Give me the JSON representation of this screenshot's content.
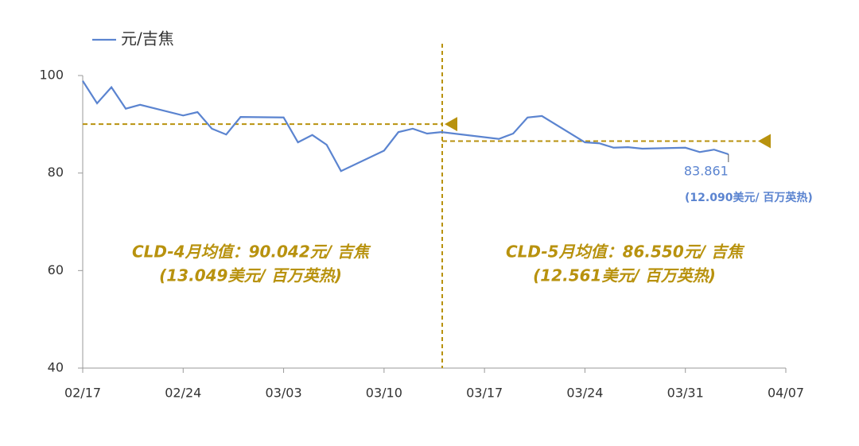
{
  "chart_data": {
    "type": "line",
    "x": [
      "02/17",
      "02/18",
      "02/19",
      "02/20",
      "02/21",
      "02/24",
      "02/25",
      "02/26",
      "02/27",
      "02/28",
      "03/03",
      "03/04",
      "03/05",
      "03/06",
      "03/07",
      "03/10",
      "03/11",
      "03/12",
      "03/13",
      "03/14",
      "03/18",
      "03/19",
      "03/20",
      "03/21",
      "03/24",
      "03/25",
      "03/26",
      "03/27",
      "03/28",
      "03/31",
      "04/01",
      "04/02",
      "04/03"
    ],
    "series": [
      {
        "name": "元/吉焦",
        "color": "#5b84d0",
        "values": [
          98.9,
          94.3,
          97.6,
          93.2,
          94.0,
          91.8,
          92.5,
          89.1,
          87.9,
          91.5,
          91.4,
          86.3,
          87.8,
          85.8,
          80.4,
          84.6,
          88.4,
          89.1,
          88.1,
          88.4,
          87.0,
          88.1,
          91.4,
          91.7,
          86.3,
          86.1,
          85.2,
          85.3,
          85.0,
          85.2,
          84.3,
          84.8,
          83.861
        ],
        "value_labels": [
          null,
          null,
          null,
          null,
          null,
          null,
          null,
          null,
          null,
          null,
          null,
          null,
          null,
          null,
          null,
          null,
          null,
          null,
          null,
          null,
          null,
          null,
          null,
          null,
          null,
          null,
          null,
          null,
          null,
          null,
          null,
          null,
          "83.861"
        ]
      }
    ],
    "last_note": "(12.090美元/ 百万英热)",
    "xticks": [
      "02/17",
      "02/24",
      "03/03",
      "03/10",
      "03/17",
      "03/24",
      "03/31",
      "04/07"
    ],
    "ylim": [
      40,
      100
    ],
    "yticks": [
      40,
      60,
      80,
      100
    ],
    "averages": [
      {
        "value": 90.042,
        "label": "CLD-4月均值：90.042元/ 吉焦",
        "sublabel": "(13.049美元/ 百万英热)",
        "color": "#b8920e"
      },
      {
        "value": 86.55,
        "label": "CLD-5月均值：86.550元/ 吉焦",
        "sublabel": "(12.561美元/ 百万英热)",
        "color": "#b8920e"
      }
    ]
  }
}
